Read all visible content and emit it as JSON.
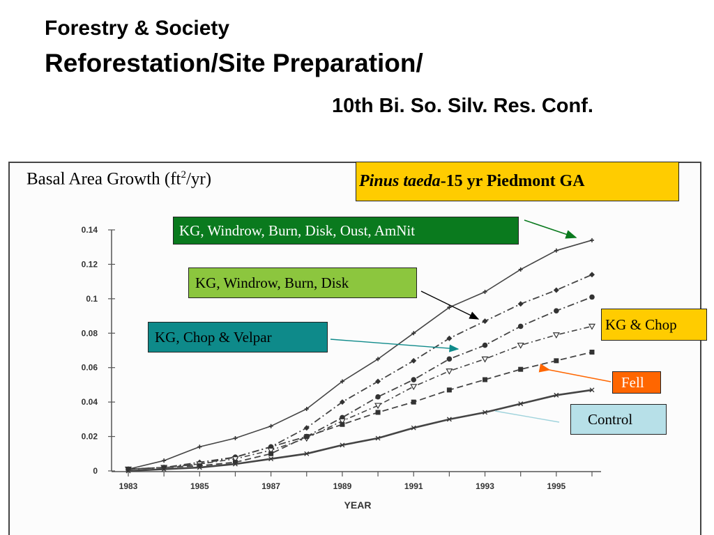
{
  "slide": {
    "title_line1": "Forestry & Society",
    "title_line2": "Reforestation/Site Preparation/",
    "source": "10th Bi. So. Silv. Res. Conf."
  },
  "chart_header": {
    "y_measure_prefix": "Basal Area Growth (ft",
    "y_measure_sup": "2",
    "y_measure_suffix": "/yr)",
    "species_italic": "Pinus taeda",
    "species_rest": "-15 yr Piedmont GA"
  },
  "labels": {
    "kg_windrow_burn_disk_oust_amnit": "KG, Windrow, Burn, Disk, Oust, AmNit",
    "kg_windrow_burn_disk": "KG, Windrow, Burn, Disk",
    "kg_chop_velpar": "KG, Chop & Velpar",
    "kg_chop": "KG & Chop",
    "fell": "Fell",
    "control": "Control"
  },
  "colors": {
    "species_box": "#ffcc00",
    "label_oust": "#0a7a1e",
    "label_disk": "#8cc63e",
    "label_velpar": "#0e8a8a",
    "label_kgchop": "#ffcc00",
    "label_fell": "#ff6600",
    "label_control": "#b7e0e8",
    "arrow_oust": "#0a7a1e",
    "arrow_disk": "#000000",
    "arrow_velpar": "#0e8a8a",
    "arrow_fell": "#ff6600",
    "arrow_control": "#9fd3dc"
  },
  "chart_data": {
    "type": "line",
    "xlabel": "YEAR",
    "ylabel": "Basal Area Growth (ft2/yr)",
    "title": "Pinus taeda-15 yr Piedmont GA",
    "xlim": [
      1983,
      1996
    ],
    "ylim": [
      0,
      0.14
    ],
    "x_ticks": [
      "1983",
      "1985",
      "1987",
      "1989",
      "1991",
      "1993",
      "1995"
    ],
    "y_ticks": [
      "0",
      "0.02",
      "0.04",
      "0.06",
      "0.08",
      "0.1",
      "0.12",
      "0.14"
    ],
    "x": [
      1983,
      1984,
      1985,
      1986,
      1987,
      1988,
      1989,
      1990,
      1991,
      1992,
      1993,
      1994,
      1995,
      1996
    ],
    "series": [
      {
        "name": "KG, Windrow, Burn, Disk, Oust, AmNit",
        "marker": "plus",
        "dash": "solid",
        "values": [
          0.001,
          0.006,
          0.014,
          0.019,
          0.026,
          0.036,
          0.052,
          0.065,
          0.08,
          0.095,
          0.104,
          0.117,
          0.128,
          0.134
        ]
      },
      {
        "name": "KG, Windrow, Burn, Disk",
        "marker": "diamond",
        "dash": "dashdot",
        "values": [
          0.001,
          0.002,
          0.005,
          0.008,
          0.014,
          0.025,
          0.04,
          0.052,
          0.064,
          0.077,
          0.087,
          0.097,
          0.105,
          0.114
        ]
      },
      {
        "name": "KG & Chop",
        "marker": "circle",
        "dash": "dashdot",
        "values": [
          0.001,
          0.002,
          0.004,
          0.008,
          0.014,
          0.02,
          0.031,
          0.043,
          0.053,
          0.065,
          0.073,
          0.084,
          0.093,
          0.101
        ]
      },
      {
        "name": "KG, Chop & Velpar",
        "marker": "triangle",
        "dash": "dotdash",
        "values": [
          0.001,
          0.002,
          0.004,
          0.007,
          0.012,
          0.019,
          0.029,
          0.038,
          0.049,
          0.058,
          0.065,
          0.073,
          0.079,
          0.084
        ]
      },
      {
        "name": "Fell",
        "marker": "square",
        "dash": "dashed",
        "values": [
          0.001,
          0.002,
          0.003,
          0.005,
          0.01,
          0.02,
          0.027,
          0.034,
          0.04,
          0.047,
          0.053,
          0.059,
          0.064,
          0.069
        ]
      },
      {
        "name": "Control",
        "marker": "star",
        "dash": "solid-thick",
        "values": [
          0.0,
          0.001,
          0.002,
          0.004,
          0.007,
          0.01,
          0.015,
          0.019,
          0.025,
          0.03,
          0.034,
          0.039,
          0.044,
          0.047
        ]
      }
    ]
  }
}
